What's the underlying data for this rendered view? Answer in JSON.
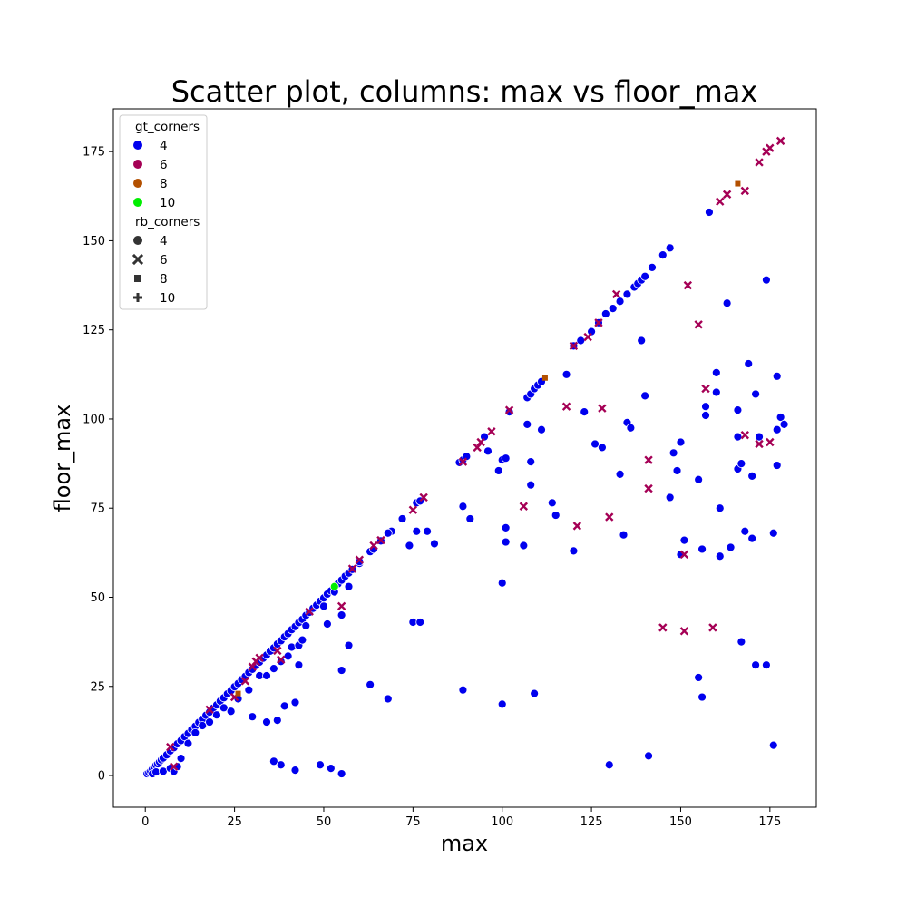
{
  "chart_data": {
    "type": "scatter",
    "title": "Scatter plot, columns: max vs floor_max",
    "xlabel": "max",
    "ylabel": "floor_max",
    "xlim": [
      -8.95,
      188.0
    ],
    "ylim": [
      -8.9,
      187.0
    ],
    "xticks": [
      0,
      25,
      50,
      75,
      100,
      125,
      150,
      175
    ],
    "yticks": [
      0,
      25,
      50,
      75,
      100,
      125,
      150,
      175
    ],
    "grid": false,
    "legend_position": "top-left",
    "legend": {
      "hue_title": "gt_corners",
      "hue_entries": [
        {
          "label": "4",
          "color": "#0000ee"
        },
        {
          "label": "6",
          "color": "#a50055"
        },
        {
          "label": "8",
          "color": "#b35000"
        },
        {
          "label": "10",
          "color": "#00ee00"
        }
      ],
      "style_title": "rb_corners",
      "style_entries": [
        {
          "label": "4",
          "marker": "circle"
        },
        {
          "label": "6",
          "marker": "x"
        },
        {
          "label": "8",
          "marker": "square"
        },
        {
          "label": "10",
          "marker": "plus"
        }
      ]
    },
    "series": [
      {
        "name": "4",
        "color": "#0000ee",
        "marker": "circle",
        "points": [
          [
            0.5,
            0.5
          ],
          [
            1,
            0.8
          ],
          [
            1.5,
            1.2
          ],
          [
            2,
            1.8
          ],
          [
            2.5,
            2.3
          ],
          [
            3,
            2.9
          ],
          [
            3.5,
            3.3
          ],
          [
            4,
            3.8
          ],
          [
            4.5,
            4.4
          ],
          [
            5,
            4.9
          ],
          [
            6,
            5.8
          ],
          [
            7,
            6.9
          ],
          [
            8,
            7.8
          ],
          [
            9,
            8.9
          ],
          [
            10,
            9.8
          ],
          [
            11,
            10.9
          ],
          [
            12,
            11.8
          ],
          [
            13,
            12.9
          ],
          [
            14,
            13.8
          ],
          [
            15,
            14.9
          ],
          [
            16,
            15.8
          ],
          [
            17,
            16.9
          ],
          [
            18,
            17.8
          ],
          [
            19,
            18.9
          ],
          [
            20,
            19.8
          ],
          [
            21,
            20.9
          ],
          [
            22,
            21.8
          ],
          [
            23,
            22.9
          ],
          [
            24,
            23.8
          ],
          [
            25,
            24.9
          ],
          [
            26,
            25.8
          ],
          [
            27,
            26.9
          ],
          [
            28,
            27.8
          ],
          [
            29,
            28.9
          ],
          [
            30,
            29.8
          ],
          [
            31,
            30.9
          ],
          [
            32,
            31.8
          ],
          [
            33,
            32.9
          ],
          [
            34,
            33.8
          ],
          [
            35,
            34.9
          ],
          [
            36,
            35.8
          ],
          [
            37,
            36.9
          ],
          [
            38,
            37.8
          ],
          [
            39,
            38.9
          ],
          [
            40,
            39.8
          ],
          [
            41,
            40.9
          ],
          [
            42,
            41.8
          ],
          [
            43,
            42.9
          ],
          [
            44,
            43.8
          ],
          [
            45,
            44.9
          ],
          [
            46,
            45.8
          ],
          [
            47,
            46.9
          ],
          [
            48,
            47.8
          ],
          [
            49,
            48.9
          ],
          [
            50,
            49.8
          ],
          [
            51,
            50.9
          ],
          [
            52,
            51.8
          ],
          [
            54,
            53.8
          ],
          [
            55,
            54.8
          ],
          [
            56,
            55.9
          ],
          [
            57,
            56.8
          ],
          [
            58,
            57.8
          ],
          [
            60,
            59.5
          ],
          [
            63,
            62.8
          ],
          [
            64,
            63.5
          ],
          [
            66,
            65.8
          ],
          [
            68,
            67.8
          ],
          [
            69,
            68.5
          ],
          [
            72,
            72
          ],
          [
            76,
            76.5
          ],
          [
            77,
            77
          ],
          [
            88,
            87.8
          ],
          [
            89,
            88.5
          ],
          [
            90,
            89.5
          ],
          [
            95,
            95
          ],
          [
            102,
            102
          ],
          [
            107,
            106
          ],
          [
            108,
            107
          ],
          [
            109,
            108.5
          ],
          [
            110,
            109.5
          ],
          [
            111,
            110.5
          ],
          [
            120,
            120.5
          ],
          [
            122,
            122
          ],
          [
            125,
            124.5
          ],
          [
            127,
            127
          ],
          [
            129,
            129.5
          ],
          [
            131,
            131
          ],
          [
            133,
            133
          ],
          [
            135,
            135
          ],
          [
            137,
            137
          ],
          [
            138,
            138
          ],
          [
            139,
            139
          ],
          [
            140,
            140
          ],
          [
            142,
            142.5
          ],
          [
            145,
            146
          ],
          [
            147,
            148
          ],
          [
            158,
            158
          ],
          [
            2,
            0.5
          ],
          [
            3,
            1
          ],
          [
            5,
            1.2
          ],
          [
            7,
            2
          ],
          [
            8,
            1.2
          ],
          [
            9,
            2.5
          ],
          [
            10,
            4.8
          ],
          [
            12,
            9
          ],
          [
            14,
            12
          ],
          [
            16,
            14
          ],
          [
            18,
            15
          ],
          [
            20,
            17
          ],
          [
            22,
            19
          ],
          [
            24,
            18
          ],
          [
            26,
            21.5
          ],
          [
            29,
            24
          ],
          [
            30,
            16.5
          ],
          [
            32,
            28
          ],
          [
            34,
            15
          ],
          [
            34,
            28
          ],
          [
            36,
            4
          ],
          [
            36,
            30
          ],
          [
            37,
            15.5
          ],
          [
            38,
            3
          ],
          [
            38,
            32
          ],
          [
            39,
            19.5
          ],
          [
            40,
            33.5
          ],
          [
            41,
            36
          ],
          [
            42,
            1.5
          ],
          [
            42,
            20.5
          ],
          [
            43,
            31
          ],
          [
            43,
            36.5
          ],
          [
            44,
            38
          ],
          [
            45,
            42
          ],
          [
            49,
            3
          ],
          [
            50,
            47.5
          ],
          [
            51,
            42.5
          ],
          [
            52,
            2
          ],
          [
            53,
            51.5
          ],
          [
            55,
            0.5
          ],
          [
            55,
            29.5
          ],
          [
            55,
            45
          ],
          [
            57,
            36.5
          ],
          [
            57,
            53
          ],
          [
            60,
            60
          ],
          [
            63,
            25.5
          ],
          [
            68,
            21.5
          ],
          [
            68,
            68
          ],
          [
            74,
            64.5
          ],
          [
            75,
            43
          ],
          [
            76,
            68.5
          ],
          [
            77,
            43
          ],
          [
            79,
            68.5
          ],
          [
            81,
            65
          ],
          [
            89,
            75.5
          ],
          [
            89,
            24
          ],
          [
            91,
            72
          ],
          [
            96,
            91
          ],
          [
            99,
            85.5
          ],
          [
            100,
            54
          ],
          [
            100,
            20
          ],
          [
            100,
            88.5
          ],
          [
            101,
            69.5
          ],
          [
            101,
            65.5
          ],
          [
            101,
            89
          ],
          [
            106,
            64.5
          ],
          [
            107,
            98.5
          ],
          [
            108,
            88
          ],
          [
            108,
            81.5
          ],
          [
            109,
            23
          ],
          [
            111,
            97
          ],
          [
            114,
            76.5
          ],
          [
            115,
            73
          ],
          [
            118,
            112.5
          ],
          [
            120,
            63
          ],
          [
            123,
            102
          ],
          [
            126,
            93
          ],
          [
            128,
            92
          ],
          [
            130,
            3
          ],
          [
            133,
            84.5
          ],
          [
            134,
            67.5
          ],
          [
            135,
            99
          ],
          [
            136,
            97.5
          ],
          [
            139,
            122
          ],
          [
            140,
            106.5
          ],
          [
            141,
            5.5
          ],
          [
            147,
            78
          ],
          [
            148,
            90.5
          ],
          [
            149,
            85.5
          ],
          [
            150,
            93.5
          ],
          [
            150,
            62
          ],
          [
            151,
            66
          ],
          [
            155,
            83
          ],
          [
            155,
            27.5
          ],
          [
            156,
            63.5
          ],
          [
            156,
            22
          ],
          [
            157,
            101
          ],
          [
            157,
            103.5
          ],
          [
            160,
            107.5
          ],
          [
            160,
            113
          ],
          [
            161,
            75
          ],
          [
            161,
            61.5
          ],
          [
            163,
            132.5
          ],
          [
            164,
            64
          ],
          [
            166,
            95
          ],
          [
            166,
            102.5
          ],
          [
            166,
            86
          ],
          [
            167,
            87.5
          ],
          [
            167,
            37.5
          ],
          [
            168,
            68.5
          ],
          [
            169,
            115.5
          ],
          [
            170,
            84
          ],
          [
            170,
            66.5
          ],
          [
            171,
            107
          ],
          [
            171,
            31
          ],
          [
            172,
            95
          ],
          [
            174,
            139
          ],
          [
            174,
            31
          ],
          [
            176,
            68
          ],
          [
            176,
            8.5
          ],
          [
            177,
            97
          ],
          [
            177,
            112
          ],
          [
            177,
            87
          ],
          [
            178,
            100.5
          ],
          [
            179,
            98.5
          ]
        ]
      },
      {
        "name": "6",
        "color": "#a50055",
        "marker": "x",
        "points": [
          [
            7,
            8
          ],
          [
            8,
            2.5
          ],
          [
            18,
            18.5
          ],
          [
            25,
            22
          ],
          [
            28,
            26.5
          ],
          [
            30,
            30.5
          ],
          [
            31,
            32
          ],
          [
            32,
            33
          ],
          [
            37,
            35
          ],
          [
            38,
            32.5
          ],
          [
            46,
            46
          ],
          [
            55,
            47.5
          ],
          [
            58,
            58
          ],
          [
            60,
            60.5
          ],
          [
            64,
            64.5
          ],
          [
            66,
            66
          ],
          [
            75,
            74.5
          ],
          [
            78,
            78
          ],
          [
            89,
            88
          ],
          [
            93,
            92
          ],
          [
            94,
            93.5
          ],
          [
            97,
            96.5
          ],
          [
            102,
            102.5
          ],
          [
            106,
            75.5
          ],
          [
            118,
            103.5
          ],
          [
            120,
            120.5
          ],
          [
            121,
            70
          ],
          [
            124,
            123
          ],
          [
            127,
            127
          ],
          [
            128,
            103
          ],
          [
            130,
            72.5
          ],
          [
            132,
            135
          ],
          [
            141,
            88.5
          ],
          [
            141,
            80.5
          ],
          [
            145,
            41.5
          ],
          [
            151,
            40.5
          ],
          [
            151,
            62
          ],
          [
            152,
            137.5
          ],
          [
            155,
            126.5
          ],
          [
            157,
            108.5
          ],
          [
            159,
            41.5
          ],
          [
            161,
            161
          ],
          [
            163,
            163
          ],
          [
            168,
            164
          ],
          [
            168,
            95.5
          ],
          [
            172,
            93
          ],
          [
            172,
            172
          ],
          [
            174,
            175
          ],
          [
            175,
            176
          ],
          [
            175,
            93.5
          ],
          [
            178,
            178
          ]
        ]
      },
      {
        "name": "8",
        "color": "#b35000",
        "marker": "square",
        "points": [
          [
            26,
            23
          ],
          [
            112,
            111.5
          ],
          [
            166,
            166
          ]
        ]
      },
      {
        "name": "10",
        "color": "#00ee00",
        "marker": "circle",
        "points": [
          [
            53,
            53
          ]
        ]
      }
    ]
  }
}
